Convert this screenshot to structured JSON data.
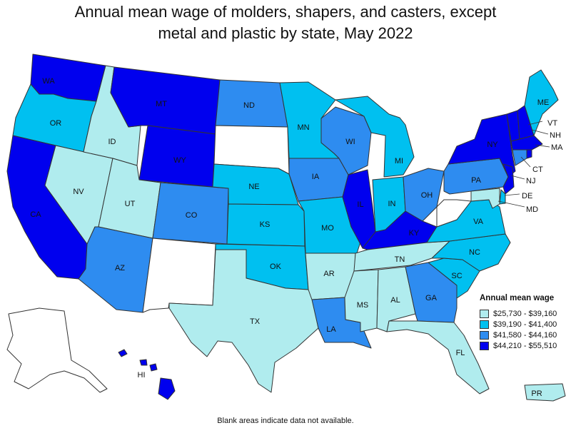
{
  "title_line1": "Annual mean wage of molders, shapers, and casters, except",
  "title_line2": "metal and plastic by state, May 2022",
  "legend": {
    "title": "Annual mean wage",
    "items": [
      {
        "label": "$25,730 - $39,160",
        "color": "#b0ecee"
      },
      {
        "label": "$39,190 - $41,400",
        "color": "#00c0f0"
      },
      {
        "label": "$41,580 - $44,160",
        "color": "#2e8cf0"
      },
      {
        "label": "$44,210 - $55,510",
        "color": "#0000ee"
      }
    ]
  },
  "no_data_color": "#ffffff",
  "footnote": "Blank areas indicate data not available.",
  "states": {
    "WA": 3,
    "OR": 1,
    "CA": 3,
    "NV": 0,
    "ID": 0,
    "MT": 3,
    "WY": 3,
    "UT": 0,
    "AZ": 2,
    "CO": 2,
    "NM": -1,
    "ND": 2,
    "SD": -1,
    "NE": 1,
    "KS": 1,
    "OK": 1,
    "TX": 0,
    "MN": 1,
    "IA": 2,
    "MO": 1,
    "AR": 0,
    "LA": 2,
    "WI": 2,
    "IL": 3,
    "MI": 1,
    "IN": 1,
    "OH": 2,
    "KY": 3,
    "TN": 0,
    "MS": 0,
    "AL": 0,
    "GA": 2,
    "FL": 0,
    "SC": 1,
    "NC": 1,
    "VA": 1,
    "WV": -1,
    "PA": 2,
    "NY": 3,
    "VT": 3,
    "NH": 3,
    "ME": 1,
    "MA": 3,
    "CT": 2,
    "RI": 3,
    "NJ": 3,
    "DE": 1,
    "MD": 0,
    "AK": -1,
    "HI": 3,
    "PR": 0
  }
}
